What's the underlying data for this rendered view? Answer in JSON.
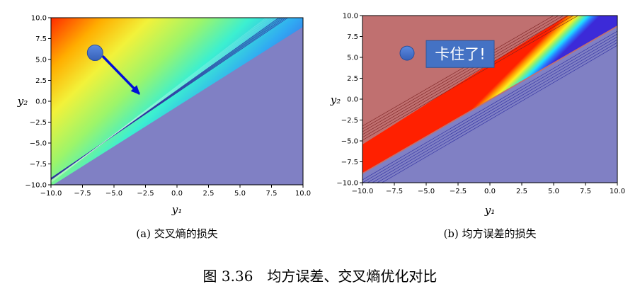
{
  "figure": {
    "caption": "图 3.36　均方误差、交叉熵优化对比"
  },
  "chart_data": [
    {
      "type": "heatmap",
      "subtitle": "(a) 交叉熵的损失",
      "xlabel": "y₁",
      "ylabel": "y₂",
      "xlim": [
        -10,
        10
      ],
      "ylim": [
        -10,
        10
      ],
      "xticks": [
        "−10.0",
        "−7.5",
        "−5.0",
        "−2.5",
        "0.0",
        "2.5",
        "5.0",
        "7.5",
        "10.0"
      ],
      "yticks": [
        "10.0",
        "7.5",
        "5.0",
        "2.5",
        "0.0",
        "−2.5",
        "−5.0",
        "−7.5",
        "−10.0"
      ],
      "surface": "contour, rainbow colormap, high loss (red) top-left, flat low region (blue) bottom-right",
      "grid": false,
      "point": {
        "x": -6.5,
        "y": 5.8,
        "color": "#4472c4"
      },
      "arrow": {
        "from": [
          -5.9,
          5.4
        ],
        "to": [
          -3.0,
          0.9
        ],
        "color": "#0010d8"
      }
    },
    {
      "type": "heatmap",
      "subtitle": "(b) 均方误差的损失",
      "xlabel": "y₁",
      "ylabel": "y₂",
      "xlim": [
        -10,
        10
      ],
      "ylim": [
        -10,
        10
      ],
      "xticks": [
        "−10.0",
        "−7.5",
        "−5.0",
        "−2.5",
        "0.0",
        "2.5",
        "5.0",
        "7.5",
        "10.0"
      ],
      "yticks": [
        "10.0",
        "7.5",
        "5.0",
        "2.5",
        "0.0",
        "−2.5",
        "−5.0",
        "−7.5",
        "−10.0"
      ],
      "surface": "contour, flat red plateau top-left, narrow rainbow band along diagonal, flat blue bottom-right",
      "grid": false,
      "point": {
        "x": -6.5,
        "y": 5.5,
        "color": "#4472c4"
      },
      "callout": {
        "text": "卡住了!",
        "x": -5.0,
        "y": 5.4,
        "color": "#4472c4"
      }
    }
  ]
}
